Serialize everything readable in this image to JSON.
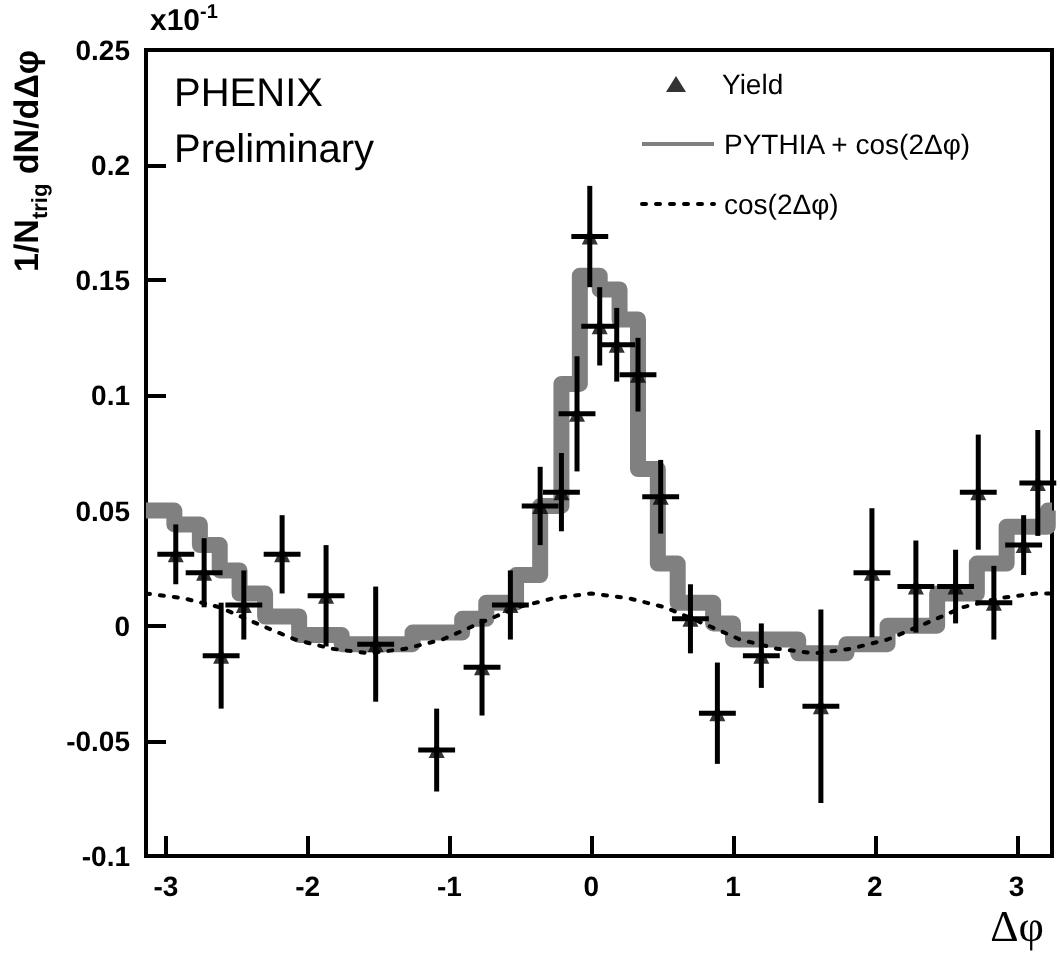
{
  "chart_data": {
    "type": "scatter",
    "xlabel": "Δφ",
    "ylabel": "1/N$_{trig}$ dN/dΔφ",
    "annotations": [
      "x10$^{-1}$",
      "PHENIX",
      "Preliminary"
    ],
    "xlim": [
      -3.14,
      3.25
    ],
    "xticks": [
      -3,
      -2,
      -1,
      0,
      1,
      2,
      3
    ],
    "ylim": [
      -0.1,
      0.25
    ],
    "yticks": [
      -0.1,
      -0.05,
      0,
      0.05,
      0.1,
      0.15,
      0.2,
      0.25
    ],
    "grid": false,
    "legend": "top right",
    "series": [
      {
        "name": "Yield",
        "color": "#000000",
        "marker": "triangle",
        "x": [
          -2.93,
          -2.73,
          -2.61,
          -2.45,
          -2.18,
          -1.87,
          -1.52,
          -1.09,
          -0.77,
          -0.57,
          -0.36,
          -0.21,
          -0.1,
          -0.01,
          0.06,
          0.18,
          0.33,
          0.49,
          0.7,
          0.89,
          1.2,
          1.62,
          1.98,
          2.29,
          2.57,
          2.73,
          2.84,
          3.05,
          3.15
        ],
        "values": [
          0.031,
          0.023,
          -0.013,
          0.009,
          0.031,
          0.013,
          -0.008,
          -0.054,
          -0.018,
          0.009,
          0.052,
          0.058,
          0.092,
          0.169,
          0.13,
          0.122,
          0.109,
          0.056,
          0.003,
          -0.038,
          -0.013,
          -0.035,
          0.023,
          0.017,
          0.017,
          0.058,
          0.01,
          0.035,
          0.062
        ],
        "errors": [
          0.013,
          0.015,
          0.023,
          0.015,
          0.017,
          0.022,
          0.025,
          0.018,
          0.021,
          0.015,
          0.017,
          0.017,
          0.025,
          0.022,
          0.017,
          0.016,
          0.016,
          0.016,
          0.015,
          0.022,
          0.014,
          0.042,
          0.028,
          0.02,
          0.016,
          0.025,
          0.016,
          0.013,
          0.023
        ],
        "xerrors": [
          0.13,
          0.13,
          0.13,
          0.13,
          0.13,
          0.13,
          0.13,
          0.13,
          0.13,
          0.13,
          0.13,
          0.13,
          0.13,
          0.13,
          0.13,
          0.13,
          0.13,
          0.13,
          0.13,
          0.13,
          0.13,
          0.13,
          0.13,
          0.13,
          0.13,
          0.13,
          0.13,
          0.13,
          0.13
        ]
      },
      {
        "name": "PYTHIA + cos(2Δφ)",
        "type": "step",
        "color": "#808080",
        "x": [
          -3.14,
          -2.94,
          -2.76,
          -2.62,
          -2.48,
          -2.3,
          -2.06,
          -1.76,
          -1.26,
          -0.91,
          -0.74,
          -0.53,
          -0.36,
          -0.21,
          -0.08,
          0.06,
          0.2,
          0.33,
          0.47,
          0.61,
          0.86,
          1.0,
          1.46,
          1.8,
          2.09,
          2.44,
          2.72,
          2.93,
          3.22,
          3.25
        ],
        "values": [
          0.05,
          0.044,
          0.035,
          0.024,
          0.014,
          0.004,
          -0.004,
          -0.008,
          -0.003,
          0.003,
          0.01,
          0.022,
          0.052,
          0.105,
          0.152,
          0.146,
          0.133,
          0.068,
          0.027,
          0.01,
          0.001,
          -0.006,
          -0.012,
          -0.008,
          0.0,
          0.014,
          0.027,
          0.043,
          0.05,
          0.05
        ]
      },
      {
        "name": "cos(2Δφ)",
        "type": "line",
        "color": "#000000",
        "line_style": "dotted",
        "marker": "none",
        "x": [
          -3.14,
          -2.88,
          -2.62,
          -2.36,
          -2.09,
          -1.83,
          -1.57,
          -1.31,
          -1.05,
          -0.79,
          -0.52,
          -0.26,
          0,
          0.26,
          0.52,
          0.79,
          1.05,
          1.31,
          1.57,
          1.83,
          2.09,
          2.36,
          2.62,
          2.88,
          3.14,
          3.25
        ],
        "values": [
          0.014,
          0.012,
          0.008,
          0.001,
          -0.006,
          -0.01,
          -0.012,
          -0.01,
          -0.006,
          0.001,
          0.008,
          0.012,
          0.014,
          0.012,
          0.008,
          0.001,
          -0.006,
          -0.01,
          -0.012,
          -0.01,
          -0.006,
          0.001,
          0.008,
          0.012,
          0.014,
          0.014
        ]
      }
    ]
  }
}
